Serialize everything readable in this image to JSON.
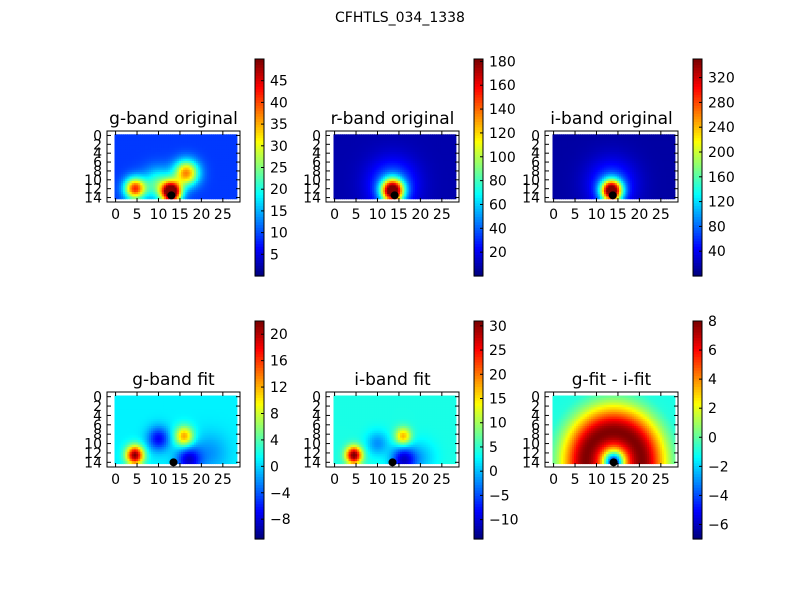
{
  "figure_title": "CFHTLS_034_1338",
  "chart_data": [
    {
      "type": "heatmap",
      "title": "g-band original",
      "x_ticks": [
        0,
        5,
        10,
        15,
        20,
        25
      ],
      "y_ticks": [
        0,
        2,
        4,
        6,
        8,
        10,
        12,
        14
      ],
      "grid_shape": [
        15,
        29
      ],
      "colorbar": {
        "range": [
          0,
          50
        ],
        "ticks": [
          5,
          10,
          15,
          20,
          25,
          30,
          35,
          40,
          45
        ]
      },
      "blobs": [
        {
          "x": 13,
          "y": 12.8,
          "amp": 48,
          "sigma": 1.6
        },
        {
          "x": 4.5,
          "y": 12,
          "amp": 32,
          "sigma": 1.7
        },
        {
          "x": 16.5,
          "y": 8.5,
          "amp": 28,
          "sigma": 2.0
        },
        {
          "x": 10,
          "y": 11,
          "amp": 14,
          "sigma": 2.5
        }
      ],
      "base": 9,
      "marker": {
        "x": 13,
        "y": 13.5
      }
    },
    {
      "type": "heatmap",
      "title": "r-band original",
      "x_ticks": [
        0,
        5,
        10,
        15,
        20,
        25
      ],
      "y_ticks": [
        0,
        2,
        4,
        6,
        8,
        10,
        12,
        14
      ],
      "grid_shape": [
        15,
        29
      ],
      "colorbar": {
        "range": [
          0,
          182
        ],
        "ticks": [
          20,
          40,
          60,
          80,
          100,
          120,
          140,
          160,
          180
        ]
      },
      "blobs": [
        {
          "x": 13.5,
          "y": 12.5,
          "amp": 175,
          "sigma": 1.8
        },
        {
          "x": 13.5,
          "y": 11,
          "amp": 35,
          "sigma": 4
        }
      ],
      "base": 8,
      "marker": {
        "x": 14,
        "y": 13.5
      }
    },
    {
      "type": "heatmap",
      "title": "i-band original",
      "x_ticks": [
        0,
        5,
        10,
        15,
        20,
        25
      ],
      "y_ticks": [
        0,
        2,
        4,
        6,
        8,
        10,
        12,
        14
      ],
      "grid_shape": [
        15,
        29
      ],
      "colorbar": {
        "range": [
          0,
          350
        ],
        "ticks": [
          40,
          80,
          120,
          160,
          200,
          240,
          280,
          320
        ]
      },
      "blobs": [
        {
          "x": 13.5,
          "y": 12.5,
          "amp": 340,
          "sigma": 1.7
        },
        {
          "x": 13.5,
          "y": 11,
          "amp": 60,
          "sigma": 4
        }
      ],
      "base": 12,
      "marker": {
        "x": 13.8,
        "y": 13.5
      }
    },
    {
      "type": "heatmap",
      "title": "g-band fit",
      "x_ticks": [
        0,
        5,
        10,
        15,
        20,
        25
      ],
      "y_ticks": [
        0,
        2,
        4,
        6,
        8,
        10,
        12,
        14
      ],
      "grid_shape": [
        15,
        29
      ],
      "colorbar": {
        "range": [
          -11,
          22
        ],
        "ticks": [
          -8,
          -4,
          0,
          4,
          8,
          12,
          16,
          20
        ]
      },
      "blobs": [
        {
          "x": 4.5,
          "y": 12.5,
          "amp": 21,
          "sigma": 1.4
        },
        {
          "x": 16,
          "y": 8.5,
          "amp": 12,
          "sigma": 1.5
        },
        {
          "x": 10,
          "y": 9,
          "amp": -8,
          "sigma": 1.8
        },
        {
          "x": 17,
          "y": 13.5,
          "amp": -9,
          "sigma": 2.0
        },
        {
          "x": 22,
          "y": 12,
          "amp": -3,
          "sigma": 3
        }
      ],
      "base": 1,
      "marker": {
        "x": 13.5,
        "y": 14
      }
    },
    {
      "type": "heatmap",
      "title": "i-band fit",
      "x_ticks": [
        0,
        5,
        10,
        15,
        20,
        25
      ],
      "y_ticks": [
        0,
        2,
        4,
        6,
        8,
        10,
        12,
        14
      ],
      "grid_shape": [
        15,
        29
      ],
      "colorbar": {
        "range": [
          -14,
          31
        ],
        "ticks": [
          -10,
          -5,
          0,
          5,
          10,
          15,
          20,
          25,
          30
        ]
      },
      "blobs": [
        {
          "x": 4.5,
          "y": 12.5,
          "amp": 28,
          "sigma": 1.3
        },
        {
          "x": 16,
          "y": 8.5,
          "amp": 14,
          "sigma": 1.3
        },
        {
          "x": 16,
          "y": 13.5,
          "amp": -14,
          "sigma": 2.0
        },
        {
          "x": 10,
          "y": 10,
          "amp": -6,
          "sigma": 1.8
        },
        {
          "x": 20,
          "y": 13,
          "amp": -4,
          "sigma": 2.5
        }
      ],
      "base": 4,
      "marker": {
        "x": 13.5,
        "y": 14
      }
    },
    {
      "type": "heatmap",
      "title": "g-fit - i-fit",
      "x_ticks": [
        0,
        5,
        10,
        15,
        20,
        25
      ],
      "y_ticks": [
        0,
        2,
        4,
        6,
        8,
        10,
        12,
        14
      ],
      "grid_shape": [
        15,
        29
      ],
      "colorbar": {
        "range": [
          -7,
          8
        ],
        "ticks": [
          -6,
          -4,
          -2,
          0,
          2,
          4,
          6,
          8
        ]
      },
      "ring": {
        "x": 14,
        "y": 14,
        "amp_inner": -7,
        "r_peak": 6.5,
        "amp_peak": 8,
        "sigma_peak": 3.5,
        "far": -1
      },
      "marker": {
        "x": 14,
        "y": 14
      }
    }
  ]
}
